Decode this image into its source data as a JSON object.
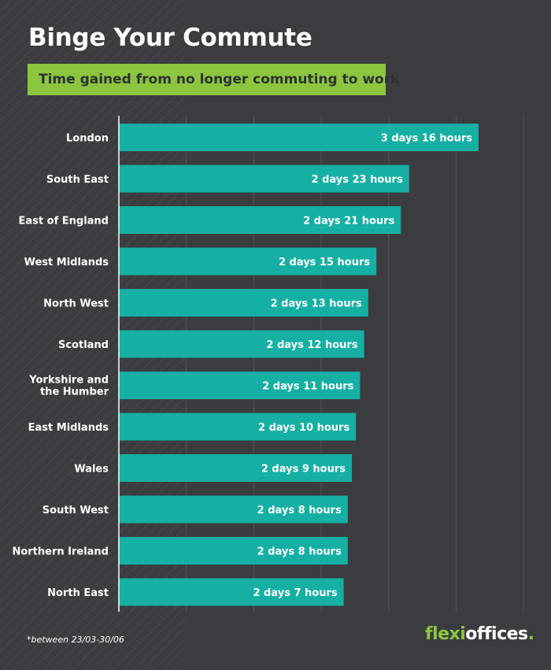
{
  "title": "Binge Your Commute",
  "subtitle": "Time gained from no longer commuting to work",
  "footnote": "*between 23/03-30/06",
  "logo": {
    "part1": "flexi",
    "part2": "offices",
    "dot": "."
  },
  "colors": {
    "bar": "#15b0a3",
    "accent": "#8cc63f",
    "background": "#3a3c40",
    "text": "#ffffff"
  },
  "chart_data": {
    "type": "bar",
    "orientation": "horizontal",
    "categories": [
      "London",
      "South East",
      "East of England",
      "West Midlands",
      "North West",
      "Scotland",
      "Yorkshire and the Humber",
      "East Midlands",
      "Wales",
      "South West",
      "Northern Ireland",
      "North East"
    ],
    "values": [
      88,
      71,
      69,
      63,
      61,
      60,
      59,
      58,
      57,
      56,
      56,
      55
    ],
    "value_unit": "hours",
    "value_labels": [
      "3 days 16 hours",
      "2 days 23 hours",
      "2 days 21 hours",
      "2 days 15 hours",
      "2 days 13 hours",
      "2 days 12 hours",
      "2 days 11 hours",
      "2 days 10 hours",
      "2 days 9 hours",
      "2 days 8 hours",
      "2 days 8 hours",
      "2 days 7 hours"
    ],
    "xlim": [
      0,
      120
    ],
    "grid": true,
    "legend": "none"
  }
}
